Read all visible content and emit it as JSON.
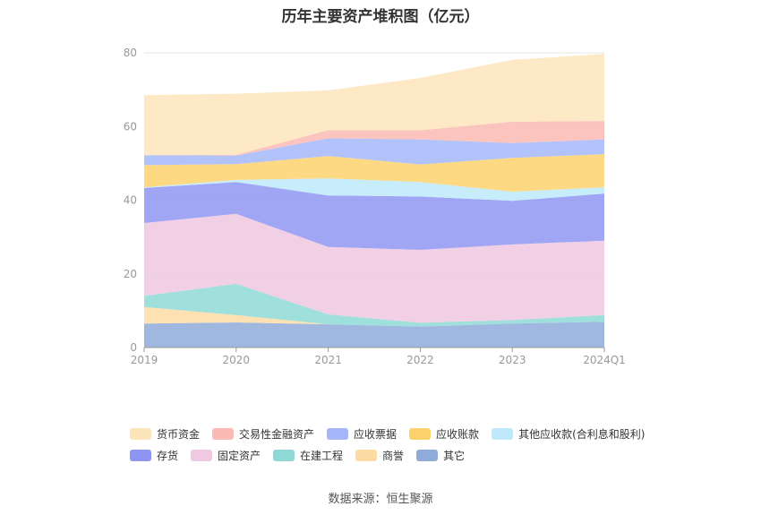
{
  "title": "历年主要资产堆积图（亿元）",
  "source": "数据来源：恒生聚源",
  "chart_data": {
    "type": "area",
    "stacked": true,
    "categories": [
      "2019",
      "2020",
      "2021",
      "2022",
      "2023",
      "2024Q1"
    ],
    "y_ticks": [
      "0",
      "20",
      "40",
      "60",
      "80"
    ],
    "ylim": [
      0,
      80
    ],
    "grid": true,
    "legend_position": "bottom",
    "series": [
      {
        "name": "其它",
        "color": "#8facd9",
        "values": [
          6.5,
          6.8,
          6.3,
          5.7,
          6.5,
          7.0
        ]
      },
      {
        "name": "商誉",
        "color": "#fddca4",
        "values": [
          4.5,
          2.0,
          0.0,
          0.0,
          0.0,
          0.0
        ]
      },
      {
        "name": "在建工程",
        "color": "#8ed9d6",
        "values": [
          3.0,
          8.5,
          2.7,
          1.0,
          1.0,
          1.8
        ]
      },
      {
        "name": "固定资产",
        "color": "#efc8e2",
        "values": [
          19.8,
          19.0,
          18.3,
          19.8,
          20.5,
          20.2
        ]
      },
      {
        "name": "存货",
        "color": "#8f95f2",
        "values": [
          9.5,
          8.6,
          14.0,
          14.5,
          11.8,
          12.8
        ]
      },
      {
        "name": "其他应收款(合利息和股利)",
        "color": "#bde9fb",
        "values": [
          0.2,
          0.6,
          4.6,
          3.9,
          2.5,
          1.7
        ]
      },
      {
        "name": "应收账款",
        "color": "#fdd26e",
        "values": [
          6.0,
          4.3,
          6.1,
          4.8,
          9.2,
          9.0
        ]
      },
      {
        "name": "应收票据",
        "color": "#a5b7fa",
        "values": [
          2.7,
          2.3,
          4.8,
          6.8,
          4.0,
          4.0
        ]
      },
      {
        "name": "交易性金融资产",
        "color": "#fbbab4",
        "values": [
          0.0,
          0.2,
          2.2,
          2.5,
          5.8,
          5.0
        ]
      },
      {
        "name": "货币资金",
        "color": "#fde5bb",
        "values": [
          16.3,
          16.6,
          10.8,
          14.2,
          16.8,
          18.2
        ]
      }
    ],
    "legend_order": [
      "货币资金",
      "交易性金融资产",
      "应收票据",
      "应收账款",
      "其他应收款(合利息和股利)",
      "存货",
      "固定资产",
      "在建工程",
      "商誉",
      "其它"
    ]
  }
}
